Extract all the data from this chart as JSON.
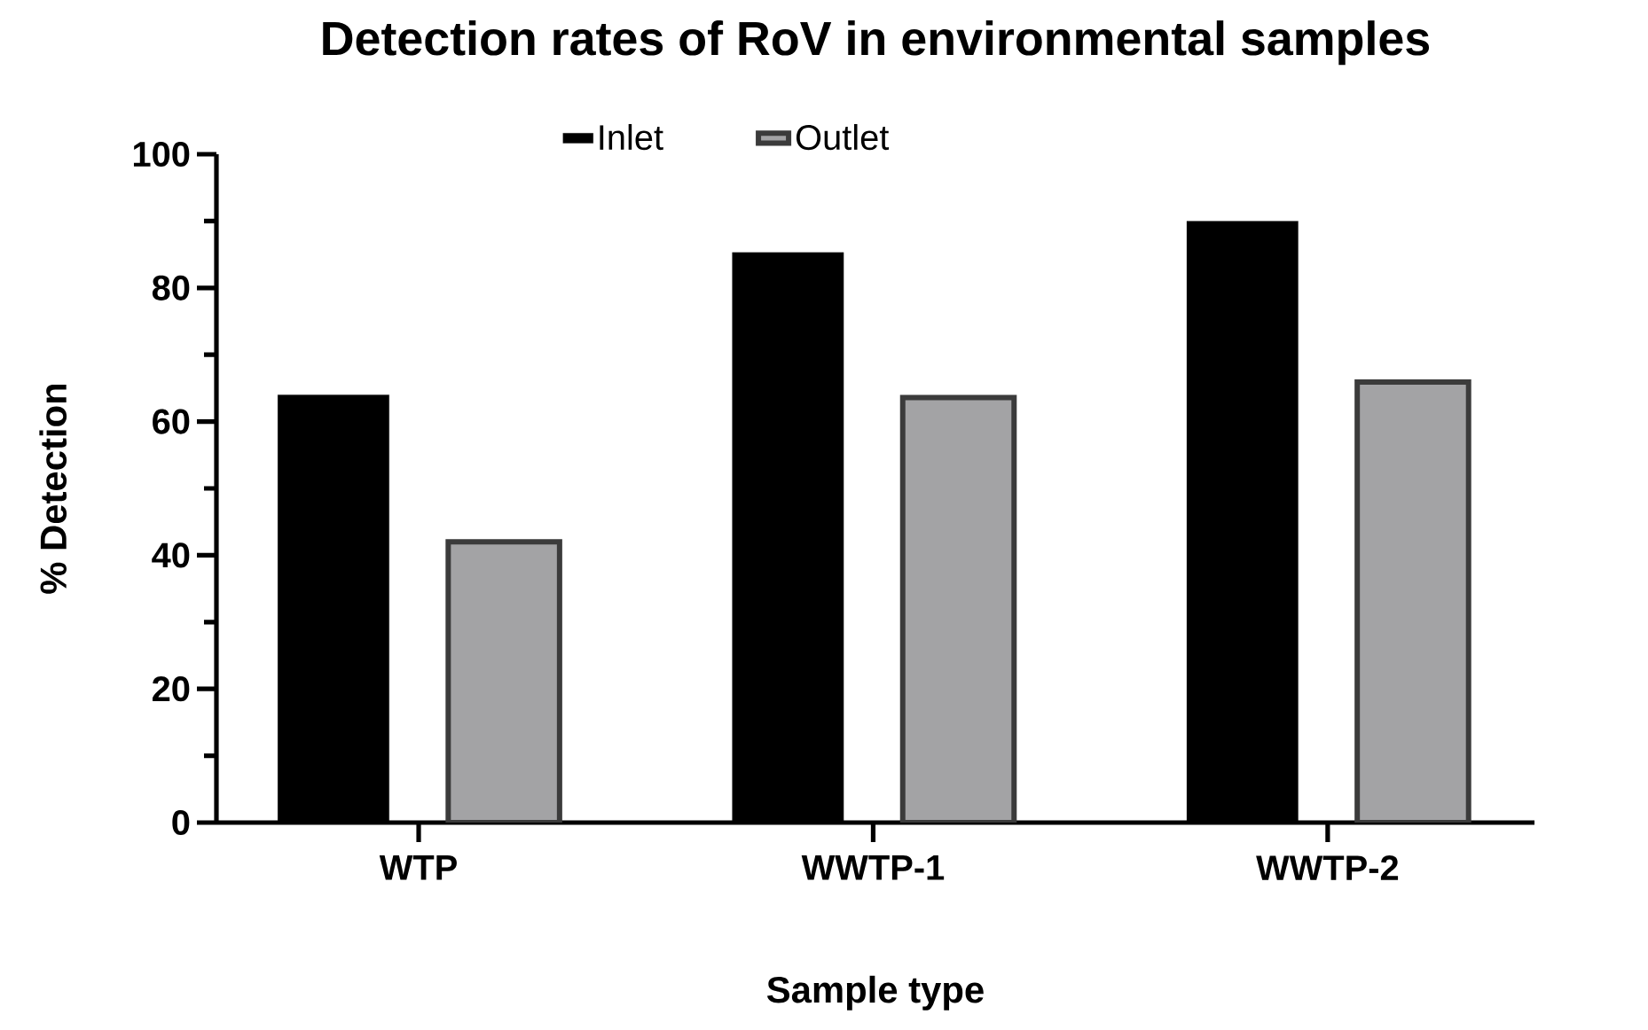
{
  "chart_data": {
    "type": "bar",
    "title": "Detection rates of RoV in environmental samples",
    "xlabel": "Sample type",
    "ylabel": "% Detection",
    "categories": [
      "WTP",
      "WWTP-1",
      "WWTP-2"
    ],
    "series": [
      {
        "name": "Inlet",
        "color": "#000000",
        "values": [
          64,
          85.3,
          90
        ]
      },
      {
        "name": "Outlet",
        "color": "#a3a3a5",
        "values": [
          42,
          63.6,
          65.9
        ]
      }
    ],
    "ylim": [
      0,
      100
    ],
    "yticks": [
      0,
      20,
      40,
      60,
      80,
      100
    ],
    "legend": "top",
    "grid": false
  }
}
